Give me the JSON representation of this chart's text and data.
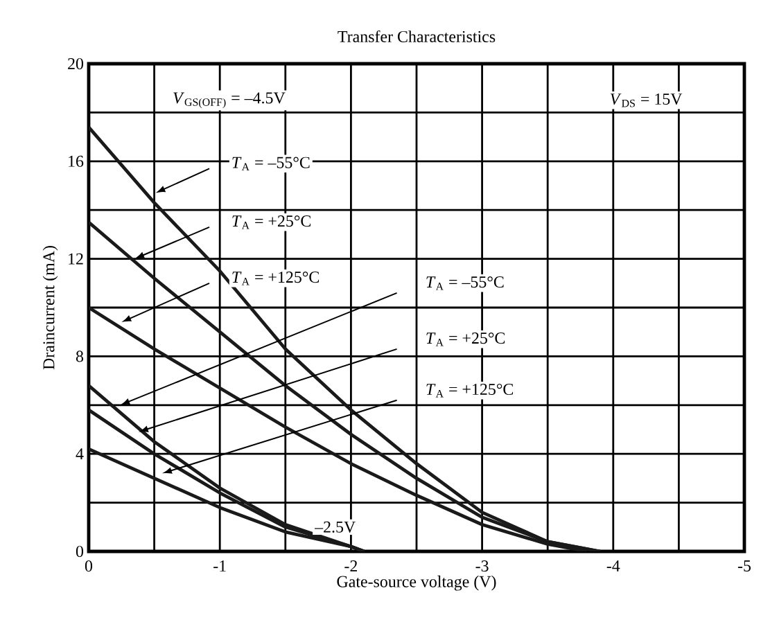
{
  "chart_data": {
    "type": "line",
    "title": "Transfer Characteristics",
    "xlabel": "Gate-source voltage (V)",
    "ylabel": "Draincurrent (mA)",
    "xlim": [
      0,
      -5
    ],
    "ylim": [
      0,
      20
    ],
    "xticks": [
      0,
      {
        "value": -0.5,
        "label": null
      },
      -1,
      {
        "value": -1.5,
        "label": null
      },
      -2,
      {
        "value": -2.5,
        "label": null
      },
      -3,
      {
        "value": -3.5,
        "label": null
      },
      -4,
      {
        "value": -4.5,
        "label": null
      },
      -5
    ],
    "yticks": [
      0,
      {
        "value": 2,
        "label": null
      },
      4,
      {
        "value": 6,
        "label": null
      },
      8,
      {
        "value": 10,
        "label": null
      },
      12,
      {
        "value": 14,
        "label": null
      },
      16,
      {
        "value": 18,
        "label": null
      },
      20
    ],
    "grid": true,
    "marker": "none",
    "line_style": "solid",
    "series": [
      {
        "color": "#1a1a1a",
        "x": [
          0,
          -0.5,
          -1,
          -1.5,
          -2,
          -2.5,
          -3,
          -3.5,
          -3.9
        ],
        "values": [
          17.4,
          14.3,
          11.5,
          8.3,
          5.8,
          3.6,
          1.6,
          0.4,
          0
        ]
      },
      {
        "color": "#1a1a1a",
        "x": [
          0,
          -0.5,
          -1,
          -1.5,
          -2,
          -2.5,
          -3,
          -3.5,
          -3.9
        ],
        "values": [
          13.5,
          11.2,
          9.0,
          6.8,
          4.8,
          3.0,
          1.4,
          0.4,
          0
        ]
      },
      {
        "color": "#1a1a1a",
        "x": [
          0,
          -0.5,
          -1,
          -1.5,
          -2,
          -2.5,
          -3,
          -3.5,
          -3.8
        ],
        "values": [
          10,
          8.3,
          6.7,
          5.1,
          3.6,
          2.3,
          1.1,
          0.3,
          0
        ]
      },
      {
        "color": "#1a1a1a",
        "x": [
          0,
          -0.5,
          -1,
          -1.5,
          -2,
          -2.1
        ],
        "values": [
          6.8,
          4.5,
          2.6,
          1.1,
          0.2,
          0
        ]
      },
      {
        "color": "#1a1a1a",
        "x": [
          0,
          -0.5,
          -1,
          -1.5,
          -2,
          -2.1
        ],
        "values": [
          5.8,
          4.0,
          2.4,
          1.0,
          0.2,
          0
        ]
      },
      {
        "color": "#1a1a1a",
        "x": [
          0,
          -0.5,
          -1,
          -1.5,
          -2,
          -2.1
        ],
        "values": [
          4.2,
          3.0,
          1.8,
          0.8,
          0.2,
          0
        ]
      }
    ],
    "annotations": [
      "*V*$_{GS(OFF)}$ = –4.5V",
      "*V*$_{DS}$ = 15V",
      "–2.5V",
      "*T*$_{A}$ = –55°C",
      "*T*$_{A}$ = +25°C",
      "*T*$_{A}$ = +125°C",
      "*T*$_{A}$ = –55°C",
      "*T*$_{A}$ = +25°C",
      "*T*$_{A}$ = +125°C"
    ]
  }
}
